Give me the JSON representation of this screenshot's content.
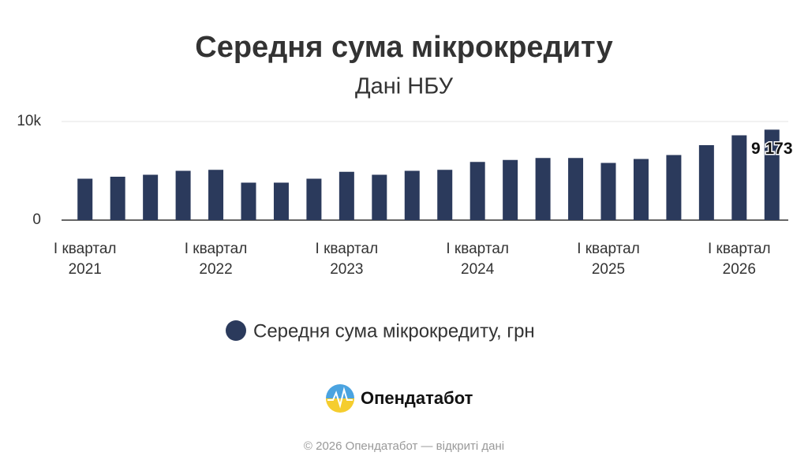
{
  "chart_data": {
    "type": "bar",
    "title": "Середня сума мікрокредиту",
    "subtitle": "Дані НБУ",
    "categories": [
      "І квартал 2021",
      null,
      null,
      null,
      "І квартал 2022",
      null,
      null,
      null,
      "І квартал 2023",
      null,
      null,
      null,
      "І квартал 2024",
      null,
      null,
      null,
      "І квартал 2025",
      null,
      null,
      null,
      "І квартал 2026",
      null
    ],
    "series": [
      {
        "name": "Середня сума мікрокредиту, грн",
        "color": "#2b3a5c",
        "values": [
          4200,
          4400,
          4600,
          5000,
          5100,
          3800,
          3800,
          4200,
          4900,
          4600,
          5000,
          5100,
          5900,
          6100,
          6300,
          6300,
          5800,
          6200,
          6600,
          7600,
          8600,
          9173
        ],
        "value_labels": [
          null,
          null,
          null,
          null,
          null,
          null,
          null,
          null,
          null,
          null,
          null,
          null,
          null,
          null,
          null,
          null,
          null,
          null,
          null,
          null,
          null,
          "9 173"
        ]
      }
    ],
    "ylim": [
      0,
      10000
    ],
    "yticks": [
      0,
      {
        "value": 10000,
        "label": "10k"
      }
    ],
    "grid": true,
    "legend": "bottom"
  },
  "brand": "Опендатабот",
  "footer": "© 2026 Опендатабот — відкриті дані"
}
